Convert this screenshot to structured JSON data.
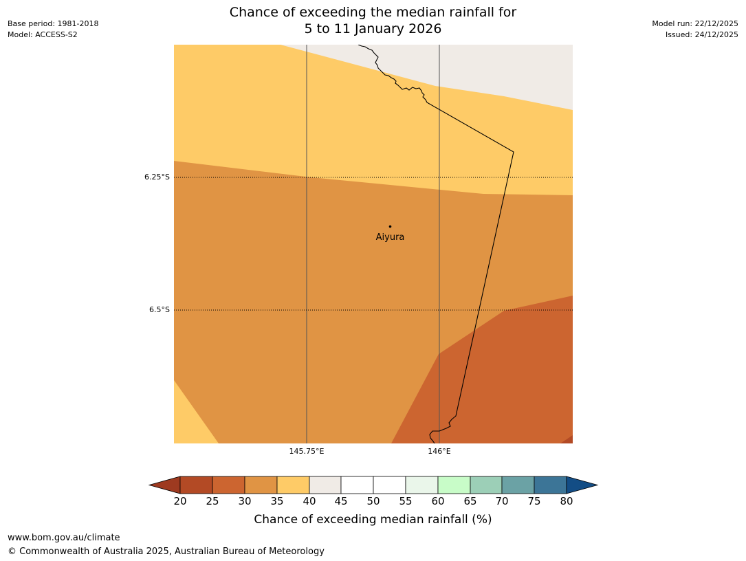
{
  "title": {
    "line1": "Chance of exceeding the median rainfall for",
    "line2": "5 to 11 January 2026"
  },
  "meta_left": {
    "base_period": "Base period: 1981-2018",
    "model": "Model: ACCESS-S2"
  },
  "meta_right": {
    "model_run": "Model run: 22/12/2025",
    "issued": "Issued: 24/12/2025"
  },
  "map": {
    "place": {
      "name": "Aiyura"
    },
    "latitude_labels": [
      "6.25°S",
      "6.5°S"
    ],
    "longitude_labels": [
      "145.75°E",
      "146°E"
    ],
    "colors": {
      "c20_25": "#b34a25",
      "c25_30": "#cc6530",
      "c30_35": "#e09444",
      "c35_40": "#fecb67",
      "c40_45": "#f0ebe6",
      "c45_55": "#ffffff",
      "c55_60": "#eaf6ea",
      "c60_65": "#c8fcc8",
      "c65_70": "#9ccfb7",
      "c70_75": "#6ba2a5",
      "c75_80": "#3c7597",
      "under": "#9e3a20",
      "over": "#134d85"
    }
  },
  "colorbar": {
    "ticks": [
      "20",
      "25",
      "30",
      "35",
      "40",
      "45",
      "50",
      "55",
      "60",
      "65",
      "70",
      "75",
      "80"
    ],
    "label": "Chance of exceeding median rainfall (%)"
  },
  "footer": {
    "url": "www.bom.gov.au/climate",
    "copyright": "© Commonwealth of Australia 2025, Australian Bureau of Meteorology"
  }
}
